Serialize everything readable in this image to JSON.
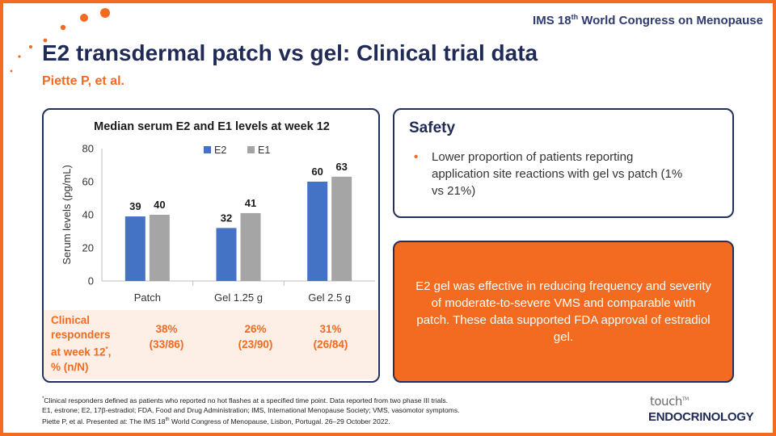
{
  "header": {
    "conference_prefix": "IMS 18",
    "conference_sup": "th",
    "conference_suffix": " World Congress on Menopause",
    "title": "E2 transdermal patch vs gel: Clinical trial data",
    "author": "Piette P, et al."
  },
  "colors": {
    "accent": "#f26b21",
    "navy": "#1f2a56",
    "e2": "#4472c4",
    "e1": "#a5a5a5",
    "responder_bg": "#fdeee6"
  },
  "chart_data": {
    "type": "bar",
    "title": "Median serum E2 and E1 levels at week 12",
    "ylabel": "Serum levels (pg/mL)",
    "xlabel": "",
    "ylim": [
      0,
      80
    ],
    "yticks": [
      "0",
      "20",
      "40",
      "60",
      "80"
    ],
    "categories": [
      "Patch",
      "Gel 1.25 g",
      "Gel 2.5 g"
    ],
    "series": [
      {
        "name": "E2",
        "values": [
          39,
          32,
          60
        ],
        "color": "#4472c4"
      },
      {
        "name": "E1",
        "values": [
          40,
          41,
          63
        ],
        "color": "#a5a5a5"
      }
    ],
    "legend": "top-right",
    "grid": false
  },
  "responders": {
    "label_line1": "Clinical",
    "label_line2": "responders",
    "label_line3": "at week 12",
    "label_sup": "*",
    "label_line4": ",",
    "label_line5": "% (n/N)",
    "values": [
      {
        "pct": "38%",
        "n": "(33/86)"
      },
      {
        "pct": "26%",
        "n": "(23/90)"
      },
      {
        "pct": "31%",
        "n": "(26/84)"
      }
    ]
  },
  "safety": {
    "title": "Safety",
    "bullet": "Lower proportion of patients reporting application site reactions with gel vs patch (1% vs 21%)",
    "bullet_marker": "•"
  },
  "conclusion": {
    "text": "E2 gel was effective in reducing frequency and severity of moderate-to-severe VMS and comparable with patch. These data supported FDA approval of estradiol gel."
  },
  "footnotes": {
    "line1_sup": "*",
    "line1": "Clinical responders defined as patients who reported no hot flashes at a specified time point. Data reported from two phase III trials.",
    "line2": "E1, estrone; E2, 17β-estradiol; FDA, Food and Drug Administration; IMS, International Menopause Society; VMS, vasomotor symptoms.",
    "line3_a": "Piette P, et al. Presented at: The IMS 18",
    "line3_sup": "th",
    "line3_b": " World Congress of Menopause, Lisbon, Portugal. 26–29 October 2022."
  },
  "logo": {
    "top": "touch",
    "tm": "TM",
    "bottom": "ENDOCRINOLOGY"
  }
}
